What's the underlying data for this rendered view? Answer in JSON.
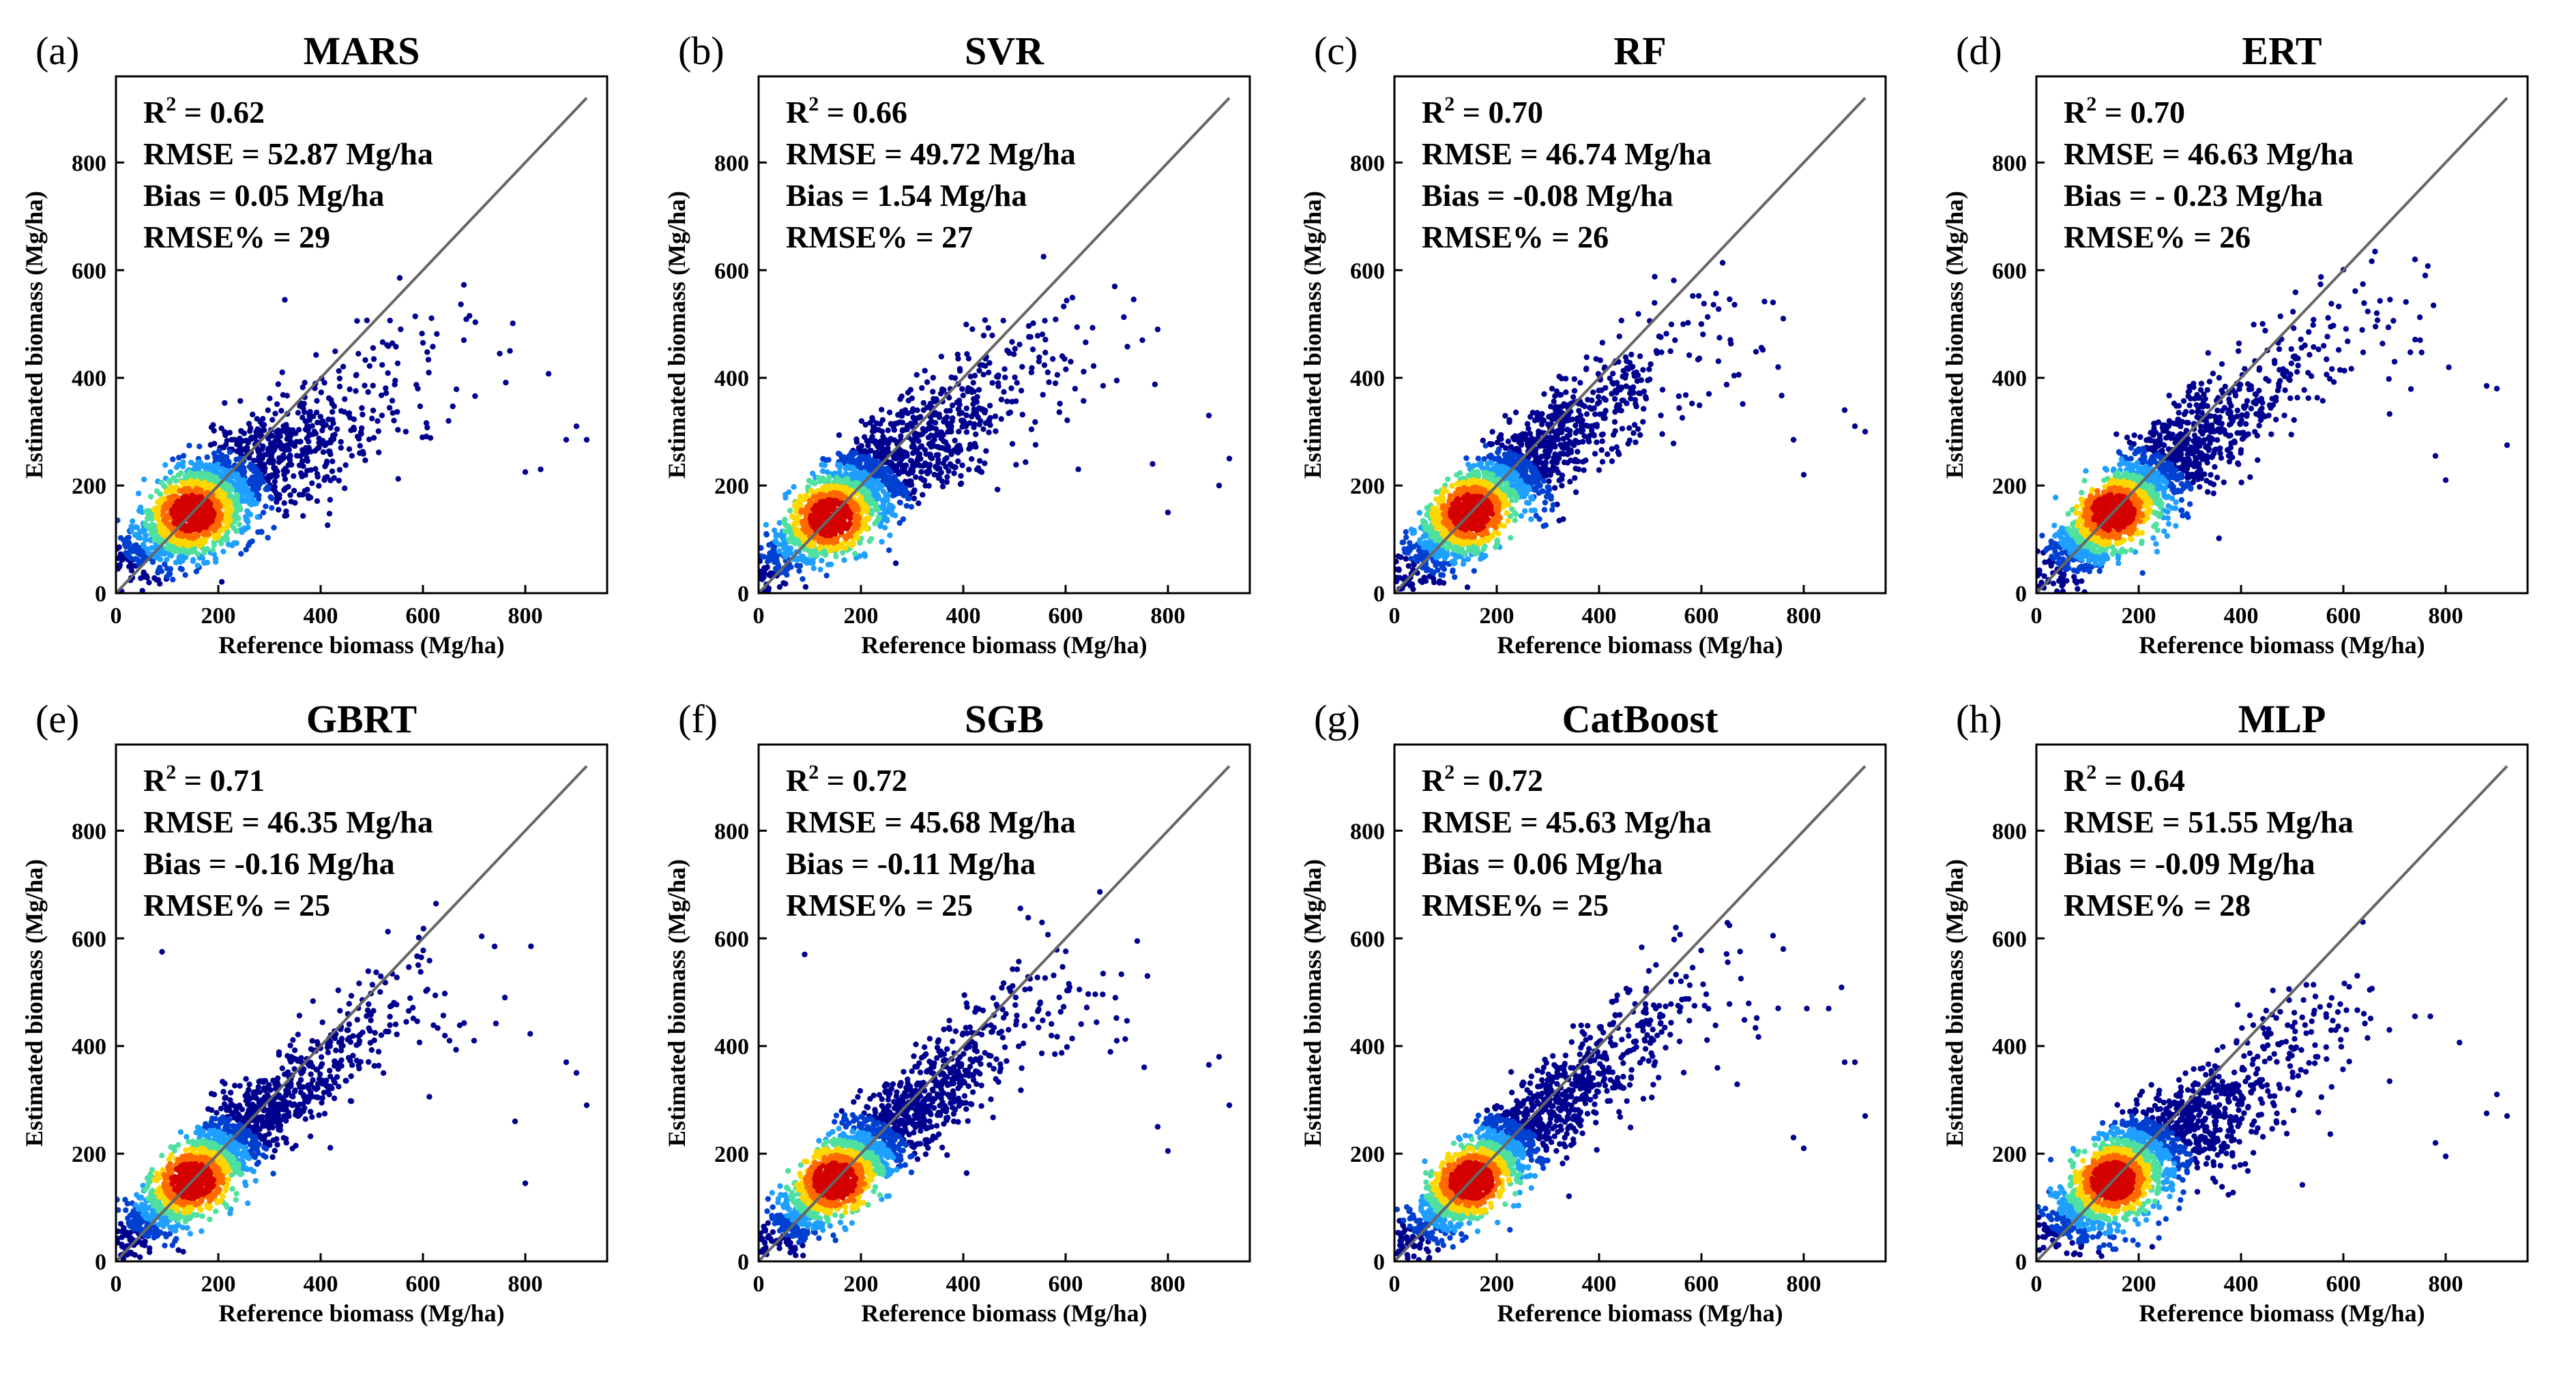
{
  "chart_data": [
    {
      "type": "scatter",
      "letter": "(a)",
      "title": "MARS",
      "xlabel": "Reference biomass (Mg/ha)",
      "ylabel": "Estimated biomass (Mg/ha)",
      "xlim": [
        0,
        960
      ],
      "ylim": [
        0,
        960
      ],
      "xticks": [
        0,
        200,
        400,
        600,
        800
      ],
      "yticks": [
        0,
        200,
        400,
        600,
        800
      ],
      "one_to_one_line": true,
      "stats": {
        "r2_label": "R",
        "r2_sup": "2",
        "r2_value": " = 0.62",
        "rmse": "RMSE = 52.87 Mg/ha",
        "bias": "Bias = 0.05 Mg/ha",
        "rmse_pct": "RMSE% = 29"
      },
      "fit": {
        "slope": 0.55,
        "intercept": 70,
        "cap": 470,
        "spread": 48
      },
      "density_center": [
        150,
        148
      ],
      "outliers": [
        [
          330,
          545
        ],
        [
          600,
          465
        ],
        [
          680,
          470
        ],
        [
          750,
          445
        ],
        [
          770,
          450
        ],
        [
          800,
          225
        ],
        [
          830,
          230
        ],
        [
          880,
          285
        ],
        [
          900,
          310
        ],
        [
          920,
          285
        ],
        [
          590,
          380
        ],
        [
          650,
          320
        ]
      ]
    },
    {
      "type": "scatter",
      "letter": "(b)",
      "title": "SVR",
      "xlabel": "Reference biomass (Mg/ha)",
      "ylabel": "Estimated biomass (Mg/ha)",
      "xlim": [
        0,
        960
      ],
      "ylim": [
        0,
        960
      ],
      "xticks": [
        0,
        200,
        400,
        600,
        800
      ],
      "yticks": [
        0,
        200,
        400,
        600,
        800
      ],
      "one_to_one_line": true,
      "stats": {
        "r2_label": "R",
        "r2_sup": "2",
        "r2_value": " = 0.66",
        "rmse": "RMSE = 49.72 Mg/ha",
        "bias": "Bias = 1.54 Mg/ha",
        "rmse_pct": "RMSE% = 27"
      },
      "fit": {
        "slope": 0.7,
        "intercept": 50,
        "cap": 470,
        "spread": 45
      },
      "density_center": [
        140,
        140
      ],
      "outliers": [
        [
          750,
          470
        ],
        [
          780,
          490
        ],
        [
          800,
          150
        ],
        [
          880,
          330
        ],
        [
          900,
          200
        ],
        [
          920,
          250
        ],
        [
          700,
          395
        ],
        [
          610,
          430
        ],
        [
          770,
          240
        ]
      ]
    },
    {
      "type": "scatter",
      "letter": "(c)",
      "title": "RF",
      "xlabel": "Reference biomass (Mg/ha)",
      "ylabel": "Estimated biomass (Mg/ha)",
      "xlim": [
        0,
        960
      ],
      "ylim": [
        0,
        960
      ],
      "xticks": [
        0,
        200,
        400,
        600,
        800
      ],
      "yticks": [
        0,
        200,
        400,
        600,
        800
      ],
      "one_to_one_line": true,
      "stats": {
        "r2_label": "R",
        "r2_sup": "2",
        "r2_value": " = 0.70",
        "rmse": "RMSE = 46.74 Mg/ha",
        "bias": "Bias = -0.08 Mg/ha",
        "rmse_pct": "RMSE% = 26"
      },
      "fit": {
        "slope": 0.75,
        "intercept": 40,
        "cap": 500,
        "spread": 42
      },
      "density_center": [
        150,
        150
      ],
      "outliers": [
        [
          740,
          540
        ],
        [
          760,
          510
        ],
        [
          750,
          420
        ],
        [
          780,
          285
        ],
        [
          800,
          220
        ],
        [
          880,
          340
        ],
        [
          900,
          310
        ],
        [
          920,
          300
        ],
        [
          600,
          500
        ]
      ]
    },
    {
      "type": "scatter",
      "letter": "(d)",
      "title": "ERT",
      "xlabel": "Reference biomass (Mg/ha)",
      "ylabel": "Estimated biomass (Mg/ha)",
      "xlim": [
        0,
        960
      ],
      "ylim": [
        0,
        960
      ],
      "xticks": [
        0,
        200,
        400,
        600,
        800
      ],
      "yticks": [
        0,
        200,
        400,
        600,
        800
      ],
      "one_to_one_line": true,
      "stats": {
        "r2_label": "R",
        "r2_sup": "2",
        "r2_value": " = 0.70",
        "rmse": "RMSE = 46.63 Mg/ha",
        "bias": "Bias = - 0.23 Mg/ha",
        "rmse_pct": "RMSE% = 26"
      },
      "fit": {
        "slope": 0.75,
        "intercept": 40,
        "cap": 520,
        "spread": 42
      },
      "density_center": [
        150,
        150
      ],
      "outliers": [
        [
          740,
          620
        ],
        [
          760,
          590
        ],
        [
          750,
          470
        ],
        [
          780,
          255
        ],
        [
          800,
          210
        ],
        [
          880,
          385
        ],
        [
          900,
          380
        ],
        [
          920,
          275
        ],
        [
          700,
          430
        ]
      ]
    },
    {
      "type": "scatter",
      "letter": "(e)",
      "title": "GBRT",
      "xlabel": "Reference biomass (Mg/ha)",
      "ylabel": "Estimated biomass (Mg/ha)",
      "xlim": [
        0,
        960
      ],
      "ylim": [
        0,
        960
      ],
      "xticks": [
        0,
        200,
        400,
        600,
        800
      ],
      "yticks": [
        0,
        200,
        400,
        600,
        800
      ],
      "one_to_one_line": true,
      "stats": {
        "r2_label": "R",
        "r2_sup": "2",
        "r2_value": " = 0.71",
        "rmse": "RMSE = 46.35 Mg/ha",
        "bias": "Bias = -0.16 Mg/ha",
        "rmse_pct": "RMSE% = 25"
      },
      "fit": {
        "slope": 0.8,
        "intercept": 35,
        "cap": 520,
        "spread": 40
      },
      "density_center": [
        150,
        150
      ],
      "outliers": [
        [
          90,
          575
        ],
        [
          740,
          585
        ],
        [
          760,
          490
        ],
        [
          780,
          260
        ],
        [
          800,
          145
        ],
        [
          880,
          370
        ],
        [
          900,
          350
        ],
        [
          920,
          290
        ],
        [
          700,
          410
        ]
      ]
    },
    {
      "type": "scatter",
      "letter": "(f)",
      "title": "SGB",
      "xlabel": "Reference biomass (Mg/ha)",
      "ylabel": "Estimated biomass (Mg/ha)",
      "xlim": [
        0,
        960
      ],
      "ylim": [
        0,
        960
      ],
      "xticks": [
        0,
        200,
        400,
        600,
        800
      ],
      "yticks": [
        0,
        200,
        400,
        600,
        800
      ],
      "one_to_one_line": true,
      "stats": {
        "r2_label": "R",
        "r2_sup": "2",
        "r2_value": " = 0.72",
        "rmse": "RMSE = 45.68 Mg/ha",
        "bias": "Bias = -0.11 Mg/ha",
        "rmse_pct": "RMSE% = 25"
      },
      "fit": {
        "slope": 0.8,
        "intercept": 35,
        "cap": 530,
        "spread": 40
      },
      "density_center": [
        150,
        150
      ],
      "outliers": [
        [
          90,
          570
        ],
        [
          740,
          595
        ],
        [
          760,
          530
        ],
        [
          780,
          250
        ],
        [
          800,
          205
        ],
        [
          880,
          365
        ],
        [
          900,
          380
        ],
        [
          920,
          290
        ],
        [
          700,
          410
        ]
      ]
    },
    {
      "type": "scatter",
      "letter": "(g)",
      "title": "CatBoost",
      "xlabel": "Reference biomass (Mg/ha)",
      "ylabel": "Estimated biomass (Mg/ha)",
      "xlim": [
        0,
        960
      ],
      "ylim": [
        0,
        960
      ],
      "xticks": [
        0,
        200,
        400,
        600,
        800
      ],
      "yticks": [
        0,
        200,
        400,
        600,
        800
      ],
      "one_to_one_line": true,
      "stats": {
        "r2_label": "R",
        "r2_sup": "2",
        "r2_value": " = 0.72",
        "rmse": "RMSE = 45.63 Mg/ha",
        "bias": "Bias = 0.06 Mg/ha",
        "rmse_pct": "RMSE% = 25"
      },
      "fit": {
        "slope": 0.8,
        "intercept": 35,
        "cap": 520,
        "spread": 40
      },
      "density_center": [
        150,
        150
      ],
      "outliers": [
        [
          740,
          605
        ],
        [
          760,
          580
        ],
        [
          750,
          470
        ],
        [
          780,
          230
        ],
        [
          800,
          210
        ],
        [
          880,
          370
        ],
        [
          900,
          370
        ],
        [
          920,
          270
        ],
        [
          550,
          620
        ]
      ]
    },
    {
      "type": "scatter",
      "letter": "(h)",
      "title": "MLP",
      "xlabel": "Reference biomass (Mg/ha)",
      "ylabel": "Estimated biomass (Mg/ha)",
      "xlim": [
        0,
        960
      ],
      "ylim": [
        0,
        960
      ],
      "xticks": [
        0,
        200,
        400,
        600,
        800
      ],
      "yticks": [
        0,
        200,
        400,
        600,
        800
      ],
      "one_to_one_line": true,
      "stats": {
        "r2_label": "R",
        "r2_sup": "2",
        "r2_value": " = 0.64",
        "rmse": "RMSE = 51.55 Mg/ha",
        "bias": "Bias = -0.09 Mg/ha",
        "rmse_pct": "RMSE% = 28"
      },
      "fit": {
        "slope": 0.65,
        "intercept": 55,
        "cap": 470,
        "spread": 46
      },
      "density_center": [
        150,
        150
      ],
      "outliers": [
        [
          740,
          455
        ],
        [
          770,
          455
        ],
        [
          780,
          220
        ],
        [
          800,
          195
        ],
        [
          880,
          275
        ],
        [
          900,
          310
        ],
        [
          920,
          270
        ],
        [
          690,
          430
        ],
        [
          640,
          460
        ]
      ]
    }
  ],
  "colors": {
    "low_density": "#00008f",
    "mid_density": "#1f9fff",
    "high_density": "#ffd700",
    "peak_density": "#d40000",
    "one_to_one_line": "#666666",
    "axis": "#000000"
  }
}
